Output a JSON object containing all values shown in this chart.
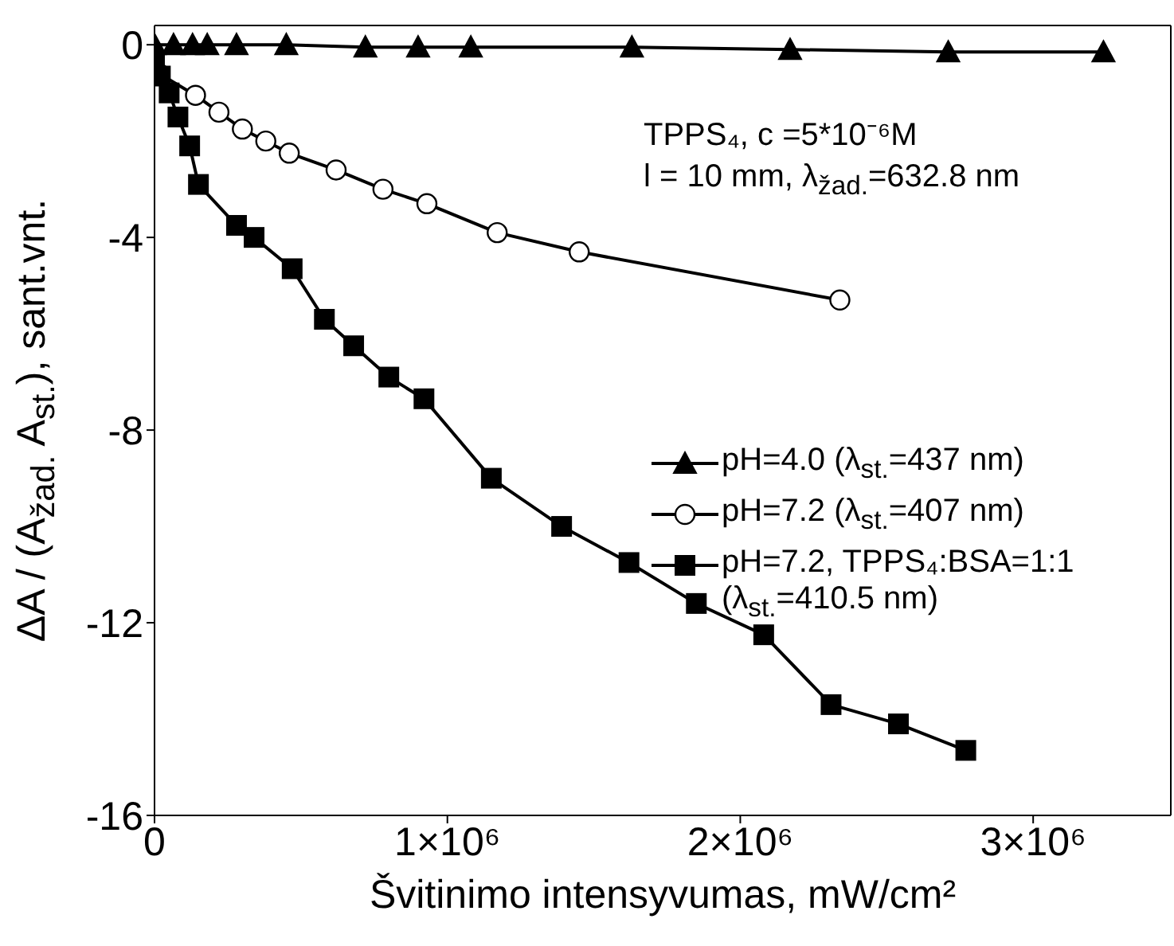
{
  "chart_data": {
    "type": "line",
    "xlabel": "Švitinimo intensyvumas, mW/cm²",
    "ylabel": "ΔA / (A$_{žad.}$ A$_{st.}$), sant.vnt.",
    "annotations": [
      "TPPS₄, c =5*10⁻⁶M",
      "l = 10 mm, λ$_{žad.}$=632.8 nm"
    ],
    "xlim": [
      0,
      3470000
    ],
    "ylim": [
      -16,
      0.4
    ],
    "xticks": [
      0,
      {
        "value": 1000000,
        "label": "1×10⁶"
      },
      {
        "value": 2000000,
        "label": "2×10⁶"
      },
      {
        "value": 3000000,
        "label": "3×10⁶"
      }
    ],
    "yticks": [
      0,
      -4,
      -8,
      -12,
      -16
    ],
    "legend": "right",
    "line_style": "solid",
    "series": [
      {
        "name": "pH=4.0 (λ$_{st.}$=437 nm)",
        "color": "#000000",
        "marker": "triangle",
        "x": [
          0,
          65000,
          130000,
          180000,
          280000,
          450000,
          720000,
          900000,
          1080000,
          1630000,
          2170000,
          2710000,
          3240000
        ],
        "values": [
          0,
          0,
          0,
          0,
          0,
          0,
          -0.05,
          -0.05,
          -0.05,
          -0.05,
          -0.1,
          -0.15,
          -0.15
        ]
      },
      {
        "name": "pH=7.2 (λ$_{st.}$=407 nm)",
        "color": "#000000",
        "marker": "circle",
        "x": [
          16000,
          140000,
          220000,
          300000,
          380000,
          460000,
          620000,
          780000,
          930000,
          1170000,
          1450000,
          2340000
        ],
        "values": [
          -0.6,
          -1.05,
          -1.4,
          -1.75,
          -2.0,
          -2.25,
          -2.6,
          -3.0,
          -3.3,
          -3.9,
          -4.3,
          -5.3
        ]
      },
      {
        "name": "pH=7.2, TPPS₄:BSA=1:1 (λ$_{st.}$=410.5 nm)",
        "color": "#000000",
        "marker": "square",
        "x": [
          0,
          20000,
          50000,
          80000,
          120000,
          150000,
          280000,
          340000,
          470000,
          580000,
          680000,
          800000,
          920000,
          1150000,
          1390000,
          1620000,
          1850000,
          2080000,
          2310000,
          2540000,
          2770000
        ],
        "values": [
          -0.35,
          -0.65,
          -1.0,
          -1.5,
          -2.1,
          -2.9,
          -3.75,
          -4.0,
          -4.65,
          -5.7,
          -6.25,
          -6.9,
          -7.35,
          -9.0,
          -10.0,
          -10.75,
          -11.6,
          -12.25,
          -13.7,
          -14.1,
          -14.65
        ]
      }
    ]
  }
}
